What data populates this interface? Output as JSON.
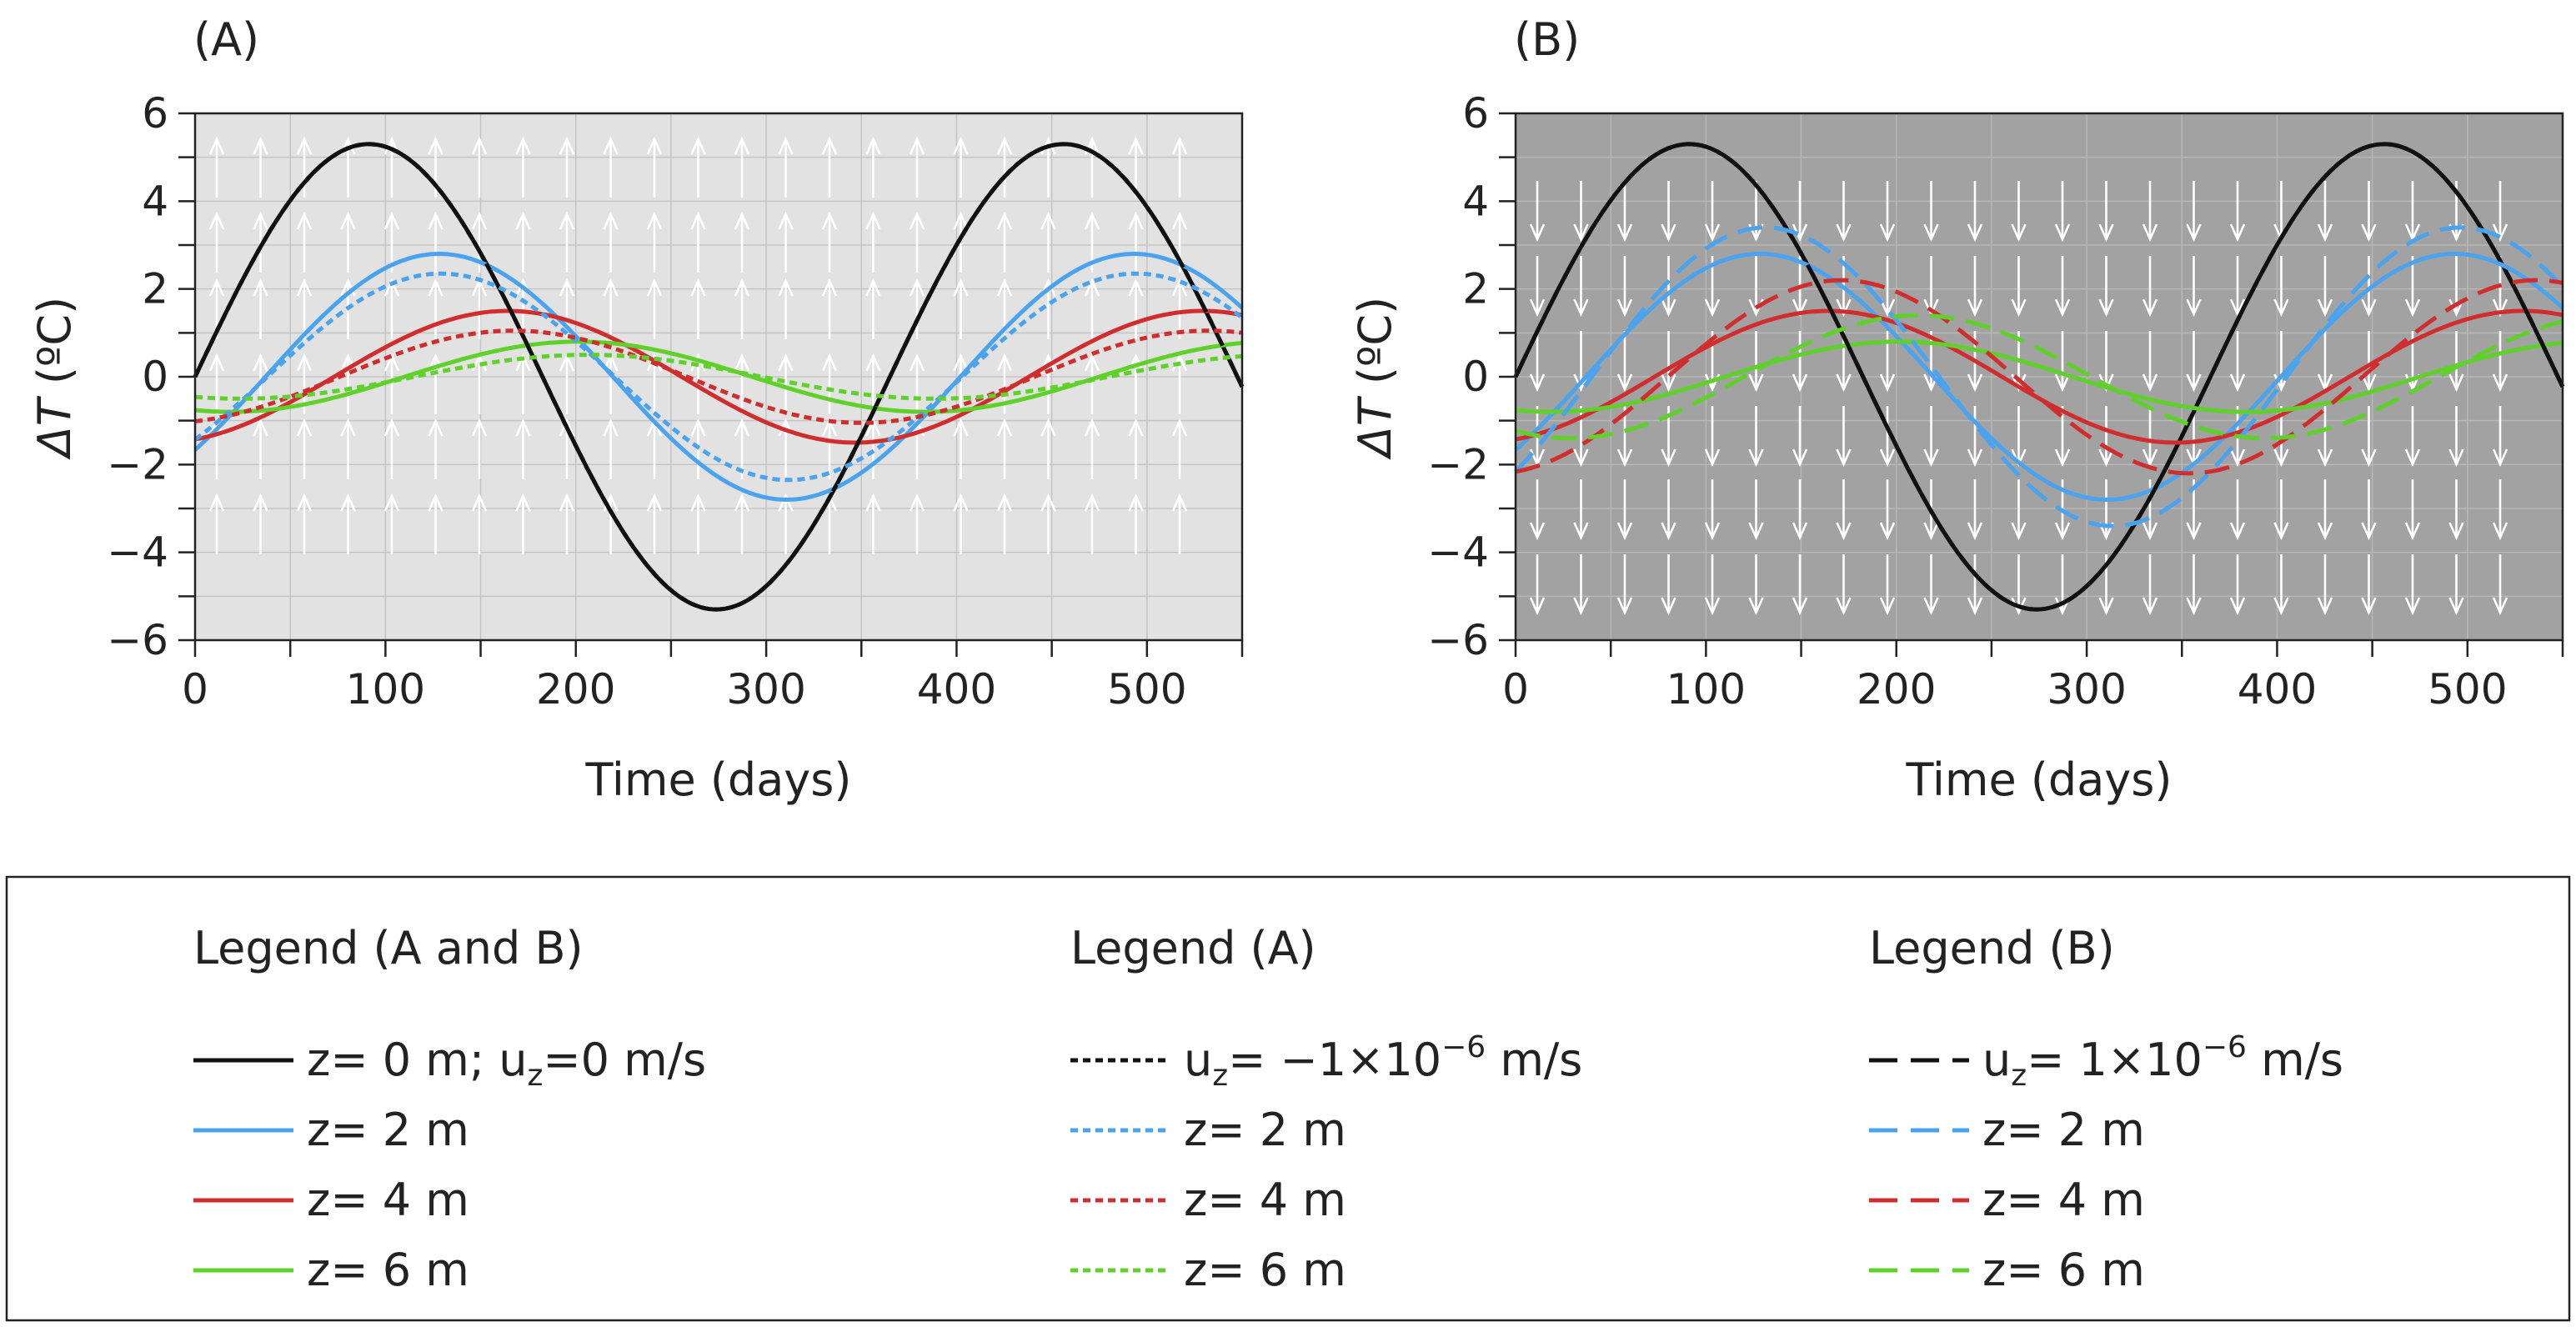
{
  "colors": {
    "black": "#111111",
    "blue": "#4aa3ee",
    "red": "#d02e2e",
    "green": "#5fd12a",
    "bg_a": "#e2e2e2",
    "bg_b": "#a2a2a2",
    "grid_a": "#c4c4c4",
    "grid_b": "#b8b8b8"
  },
  "chart_data": [
    {
      "id": "A",
      "panel_label": "(A)",
      "type": "line",
      "xlabel": "Time (days)",
      "ylabel_symbol": "ΔT",
      "ylabel_unit": " (ºC)",
      "xlim": [
        0,
        550
      ],
      "ylim": [
        -6,
        6
      ],
      "xticks": [
        0,
        100,
        200,
        300,
        400,
        500
      ],
      "yticks": [
        -6,
        -4,
        -2,
        0,
        2,
        4,
        6
      ],
      "flow_arrows": "up",
      "series": [
        {
          "name": "z= 0 m; u_z=0 m/s",
          "color": "black",
          "style": "solid",
          "amplitude": 5.3,
          "lag_days": 0
        },
        {
          "name": "z= 2 m",
          "color": "blue",
          "style": "solid",
          "amplitude": 2.8,
          "lag_days": 37
        },
        {
          "name": "z= 4 m",
          "color": "red",
          "style": "solid",
          "amplitude": 1.5,
          "lag_days": 73
        },
        {
          "name": "z= 6 m",
          "color": "green",
          "style": "solid",
          "amplitude": 0.8,
          "lag_days": 110
        },
        {
          "name": "u_z= −1×10⁻⁶ m/s",
          "color": "black",
          "style": "dotted",
          "amplitude": 5.3,
          "lag_days": 0
        },
        {
          "name": "z= 2 m",
          "color": "blue",
          "style": "dotted",
          "amplitude": 2.35,
          "lag_days": 38
        },
        {
          "name": "z= 4 m",
          "color": "red",
          "style": "dotted",
          "amplitude": 1.05,
          "lag_days": 76
        },
        {
          "name": "z= 6 m",
          "color": "green",
          "style": "dotted",
          "amplitude": 0.5,
          "lag_days": 115
        }
      ]
    },
    {
      "id": "B",
      "panel_label": "(B)",
      "type": "line",
      "xlabel": "Time (days)",
      "ylabel_symbol": "ΔT",
      "ylabel_unit": " (ºC)",
      "xlim": [
        0,
        550
      ],
      "ylim": [
        -6,
        6
      ],
      "xticks": [
        0,
        100,
        200,
        300,
        400,
        500
      ],
      "yticks": [
        -6,
        -4,
        -2,
        0,
        2,
        4,
        6
      ],
      "flow_arrows": "down",
      "series": [
        {
          "name": "z= 0 m; u_z=0 m/s",
          "color": "black",
          "style": "solid",
          "amplitude": 5.3,
          "lag_days": 0
        },
        {
          "name": "z= 2 m",
          "color": "blue",
          "style": "solid",
          "amplitude": 2.8,
          "lag_days": 37
        },
        {
          "name": "z= 4 m",
          "color": "red",
          "style": "solid",
          "amplitude": 1.5,
          "lag_days": 73
        },
        {
          "name": "z= 6 m",
          "color": "green",
          "style": "solid",
          "amplitude": 0.8,
          "lag_days": 110
        },
        {
          "name": "u_z= 1×10⁻⁶ m/s",
          "color": "black",
          "style": "dashed",
          "amplitude": 5.3,
          "lag_days": 0
        },
        {
          "name": "z= 2 m",
          "color": "blue",
          "style": "dashed",
          "amplitude": 3.4,
          "lag_days": 40
        },
        {
          "name": "z= 4 m",
          "color": "red",
          "style": "dashed",
          "amplitude": 2.2,
          "lag_days": 80
        },
        {
          "name": "z= 6 m",
          "color": "green",
          "style": "dashed",
          "amplitude": 1.4,
          "lag_days": 120
        }
      ]
    }
  ],
  "legend": {
    "groups": [
      {
        "title": "Legend (A and B)",
        "entries": [
          {
            "style": "solid",
            "color": "black",
            "text": "z= 0 m; u",
            "sub": "z",
            "text2": "=0 m/s",
            "sup": ""
          },
          {
            "style": "solid",
            "color": "blue",
            "text": "z= 2 m",
            "sub": "",
            "text2": "",
            "sup": ""
          },
          {
            "style": "solid",
            "color": "red",
            "text": "z= 4 m",
            "sub": "",
            "text2": "",
            "sup": ""
          },
          {
            "style": "solid",
            "color": "green",
            "text": "z= 6 m",
            "sub": "",
            "text2": "",
            "sup": ""
          }
        ]
      },
      {
        "title": "Legend (A)",
        "entries": [
          {
            "style": "dotted",
            "color": "black",
            "text": "u",
            "sub": "z",
            "text2": "= −1×10",
            "sup": "−6",
            "text3": " m/s"
          },
          {
            "style": "dotted",
            "color": "blue",
            "text": "z= 2 m",
            "sub": "",
            "text2": "",
            "sup": ""
          },
          {
            "style": "dotted",
            "color": "red",
            "text": "z= 4 m",
            "sub": "",
            "text2": "",
            "sup": ""
          },
          {
            "style": "dotted",
            "color": "green",
            "text": "z= 6 m",
            "sub": "",
            "text2": "",
            "sup": ""
          }
        ]
      },
      {
        "title": "Legend (B)",
        "entries": [
          {
            "style": "dashed",
            "color": "black",
            "text": "u",
            "sub": "z",
            "text2": "= 1×10",
            "sup": "−6",
            "text3": " m/s"
          },
          {
            "style": "dashed",
            "color": "blue",
            "text": "z= 2 m",
            "sub": "",
            "text2": "",
            "sup": ""
          },
          {
            "style": "dashed",
            "color": "red",
            "text": "z= 4 m",
            "sub": "",
            "text2": "",
            "sup": ""
          },
          {
            "style": "dashed",
            "color": "green",
            "text": "z= 6 m",
            "sub": "",
            "text2": "",
            "sup": ""
          }
        ]
      }
    ]
  }
}
